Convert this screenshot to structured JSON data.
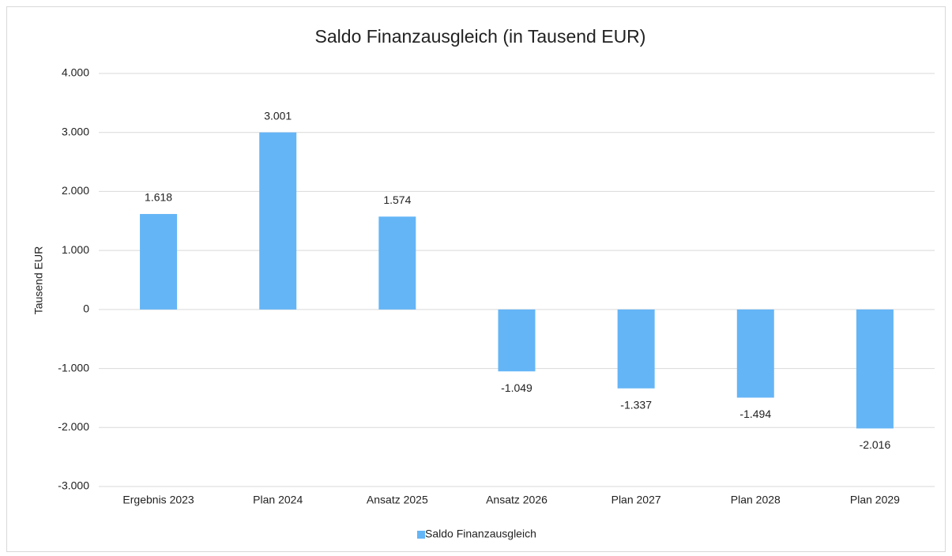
{
  "chart_data": {
    "type": "bar",
    "title": "Saldo Finanzausgleich (in Tausend EUR)",
    "y_label": "Tausend EUR",
    "categories": [
      "Ergebnis 2023",
      "Plan 2024",
      "Ansatz 2025",
      "Ansatz 2026",
      "Plan 2027",
      "Plan 2028",
      "Plan 2029"
    ],
    "series": [
      {
        "name": "Saldo Finanzausgleich",
        "color": "#64b5f6",
        "values": [
          1618,
          3001,
          1574,
          -1049,
          -1337,
          -1494,
          -2016
        ],
        "value_labels": [
          "1.618",
          "3.001",
          "1.574",
          "-1.049",
          "-1.337",
          "-1.494",
          "-2.016"
        ]
      }
    ],
    "ylim": [
      -3000,
      4000
    ],
    "yticks": [
      {
        "value": -3000,
        "label": "-3.000"
      },
      {
        "value": -2000,
        "label": "-2.000"
      },
      {
        "value": -1000,
        "label": "-1.000"
      },
      0,
      {
        "value": 1000,
        "label": "1.000"
      },
      {
        "value": 2000,
        "label": "2.000"
      },
      {
        "value": 3000,
        "label": "3.000"
      },
      {
        "value": 4000,
        "label": "4.000"
      }
    ],
    "grid": true,
    "legend": "bottom"
  }
}
